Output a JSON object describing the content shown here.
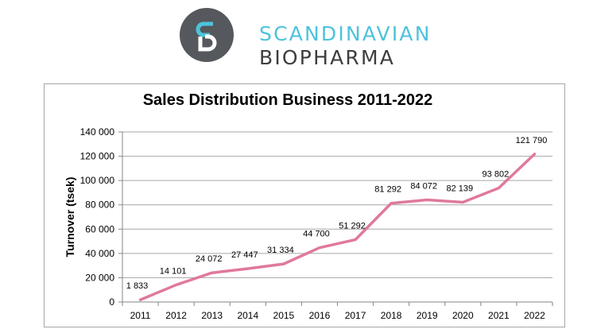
{
  "logo": {
    "line1": "SCANDINAVIAN",
    "line2": "BIOPHARMA",
    "icon": "sb-monogram-icon",
    "colors": {
      "accent": "#4cc3dc",
      "dark": "#55585c",
      "text_dark": "#3d3d3f"
    }
  },
  "chart_data": {
    "type": "line",
    "title": "Sales Distribution Business 2011-2022",
    "xlabel": "",
    "ylabel": "Turnover (tsek)",
    "categories": [
      "2011",
      "2012",
      "2013",
      "2014",
      "2015",
      "2016",
      "2017",
      "2018",
      "2019",
      "2020",
      "2021",
      "2022"
    ],
    "series": [
      {
        "name": "Turnover",
        "color": "#e0799a",
        "values": [
          1833,
          14101,
          24072,
          27447,
          31334,
          44700,
          51292,
          81292,
          84072,
          82139,
          93802,
          121790
        ],
        "labels": [
          "1 833",
          "14 101",
          "24 072",
          "27 447",
          "31 334",
          "44 700",
          "51 292",
          "81 292",
          "84 072",
          "82 139",
          "93 802",
          "121 790"
        ]
      }
    ],
    "ylim": [
      0,
      140000
    ],
    "yticks": [
      0,
      20000,
      40000,
      60000,
      80000,
      100000,
      120000,
      140000
    ],
    "ytick_labels": [
      "0",
      "20 000",
      "40 000",
      "60 000",
      "80 000",
      "100 000",
      "120 000",
      "140 000"
    ],
    "grid": true,
    "legend": "none"
  }
}
